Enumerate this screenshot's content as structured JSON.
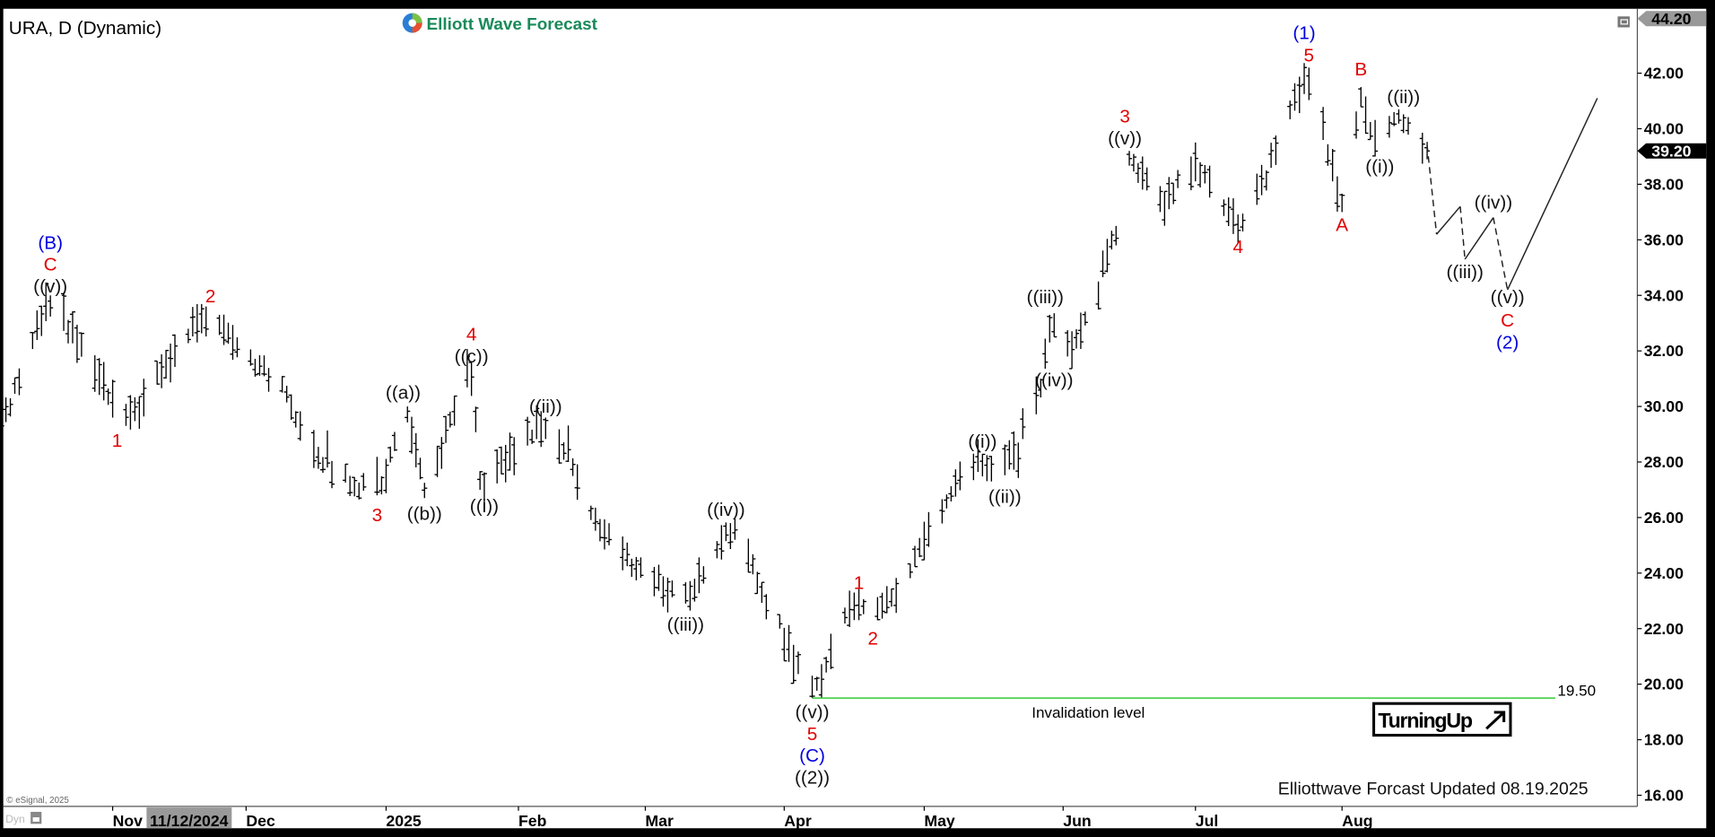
{
  "header": {
    "title": "URA, D (Dynamic)",
    "logo_text": "Elliott Wave Forecast"
  },
  "footer": {
    "copyright": "© eSignal, 2025",
    "dyn_label": "Dyn",
    "updated_text": "Elliottwave Forcast Updated 08.19.2025",
    "turning_up": "TurningUp"
  },
  "crosshair_date": "11/12/2024",
  "colors": {
    "red": "#e00000",
    "blue": "#0000e0",
    "black": "#111111",
    "invalidation_line": "#33cc33",
    "logo_green": "#1a8a5a"
  },
  "chart_data": {
    "type": "ohlc-bar",
    "symbol": "URA",
    "interval": "D",
    "ylim": [
      15.6,
      44.32
    ],
    "grid": false,
    "y_ticks": [
      "16.00",
      "18.00",
      "20.00",
      "22.00",
      "24.00",
      "26.00",
      "28.00",
      "30.00",
      "32.00",
      "34.00",
      "36.00",
      "38.00",
      "40.00",
      "42.00"
    ],
    "top_price_label": "44.20",
    "last_price_label": "39.20",
    "last_price": 39.2,
    "x_ticks": [
      {
        "label": "Nov",
        "date": "2024-11-01"
      },
      {
        "label": "Dec",
        "date": "2024-12-01"
      },
      {
        "label": "2025",
        "date": "2025-01-01"
      },
      {
        "label": "Feb",
        "date": "2025-02-01"
      },
      {
        "label": "Mar",
        "date": "2025-03-01"
      },
      {
        "label": "Apr",
        "date": "2025-04-01"
      },
      {
        "label": "May",
        "date": "2025-05-01"
      },
      {
        "label": "Jun",
        "date": "2025-06-01"
      },
      {
        "label": "Jul",
        "date": "2025-07-01"
      },
      {
        "label": "Aug",
        "date": "2025-08-01"
      }
    ],
    "first_bar_date": "2024-10-07",
    "last_bar_date": "2025-08-19",
    "swing_points": [
      [
        "2024-10-07",
        29.2
      ],
      [
        "2024-10-18",
        34.0
      ],
      [
        "2024-11-04",
        29.3
      ],
      [
        "2024-11-22",
        33.6
      ],
      [
        "2024-12-09",
        30.5
      ],
      [
        "2024-12-19",
        27.8
      ],
      [
        "2024-12-30",
        26.8
      ],
      [
        "2025-01-06",
        30.0
      ],
      [
        "2025-01-10",
        26.7
      ],
      [
        "2025-01-21",
        31.6
      ],
      [
        "2025-01-23",
        27.0
      ],
      [
        "2025-02-07",
        29.6
      ],
      [
        "2025-02-12",
        28.0
      ],
      [
        "2025-02-21",
        25.0
      ],
      [
        "2025-03-10",
        22.9
      ],
      [
        "2025-03-20",
        25.8
      ],
      [
        "2025-03-31",
        22.0
      ],
      [
        "2025-04-07",
        19.5
      ],
      [
        "2025-04-16",
        23.3
      ],
      [
        "2025-04-21",
        22.3
      ],
      [
        "2025-05-12",
        28.3
      ],
      [
        "2025-05-16",
        27.3
      ],
      [
        "2025-05-22",
        28.7
      ],
      [
        "2025-05-27",
        31.0
      ],
      [
        "2025-05-29",
        33.3
      ],
      [
        "2025-06-02",
        31.8
      ],
      [
        "2025-06-09",
        34.5
      ],
      [
        "2025-06-13",
        36.5
      ],
      [
        "2025-06-16",
        39.2
      ],
      [
        "2025-06-23",
        37.0
      ],
      [
        "2025-06-30",
        39.0
      ],
      [
        "2025-07-11",
        36.3
      ],
      [
        "2025-07-16",
        38.5
      ],
      [
        "2025-07-25",
        42.2
      ],
      [
        "2025-08-01",
        37.0
      ],
      [
        "2025-08-05",
        41.5
      ],
      [
        "2025-08-08",
        39.0
      ],
      [
        "2025-08-12",
        40.6
      ],
      [
        "2025-08-19",
        38.9
      ]
    ],
    "projection": [
      [
        "2025-08-19",
        39.4
      ],
      [
        "2025-08-21",
        36.2
      ],
      [
        "2025-08-26",
        37.2
      ],
      [
        "2025-08-27",
        35.3
      ],
      [
        "2025-09-02",
        36.8
      ],
      [
        "2025-09-05",
        34.2
      ],
      [
        "2025-09-24",
        41.1
      ]
    ],
    "invalidation": {
      "price": 19.5,
      "price_label": "19.50",
      "text": "Invalidation level",
      "start_date": "2025-04-07"
    },
    "wave_labels": [
      {
        "text": "(B)",
        "date": "2024-10-18",
        "price": 35.85,
        "color": "blue"
      },
      {
        "text": "C",
        "date": "2024-10-18",
        "price": 35.15,
        "color": "red"
      },
      {
        "text": "((v))",
        "date": "2024-10-18",
        "price": 34.4,
        "color": "black"
      },
      {
        "text": "1",
        "date": "2024-11-02",
        "price": 28.73,
        "color": "red"
      },
      {
        "text": "2",
        "date": "2024-11-23",
        "price": 33.92,
        "color": "red"
      },
      {
        "text": "3",
        "date": "2024-12-30",
        "price": 26.05,
        "color": "red"
      },
      {
        "text": "((a))",
        "date": "2025-01-05",
        "price": 30.46,
        "color": "black"
      },
      {
        "text": "((b))",
        "date": "2025-01-10",
        "price": 26.1,
        "color": "black"
      },
      {
        "text": "4",
        "date": "2025-01-21",
        "price": 32.55,
        "color": "red"
      },
      {
        "text": "((c))",
        "date": "2025-01-21",
        "price": 31.84,
        "color": "black"
      },
      {
        "text": "((i))",
        "date": "2025-01-24",
        "price": 26.36,
        "color": "black"
      },
      {
        "text": "((ii))",
        "date": "2025-02-07",
        "price": 29.95,
        "color": "black"
      },
      {
        "text": "((iii))",
        "date": "2025-03-10",
        "price": 22.1,
        "color": "black"
      },
      {
        "text": "((iv))",
        "date": "2025-03-19",
        "price": 26.24,
        "color": "black"
      },
      {
        "text": "((v))",
        "date": "2025-04-07",
        "price": 18.95,
        "color": "black"
      },
      {
        "text": "5",
        "date": "2025-04-07",
        "price": 18.3,
        "color": "red"
      },
      {
        "text": "(C)",
        "date": "2025-04-07",
        "price": 17.6,
        "color": "blue"
      },
      {
        "text": "((2))",
        "date": "2025-04-07",
        "price": 16.83,
        "color": "black"
      },
      {
        "text": "1",
        "date": "2025-04-17",
        "price": 23.6,
        "color": "red"
      },
      {
        "text": "2",
        "date": "2025-04-20",
        "price": 21.6,
        "color": "red"
      },
      {
        "text": "((i))",
        "date": "2025-05-14",
        "price": 28.7,
        "color": "black"
      },
      {
        "text": "((ii))",
        "date": "2025-05-19",
        "price": 26.7,
        "color": "black"
      },
      {
        "text": "((iii))",
        "date": "2025-05-28",
        "price": 33.9,
        "color": "black"
      },
      {
        "text": "((iv))",
        "date": "2025-05-30",
        "price": 30.9,
        "color": "black"
      },
      {
        "text": "3",
        "date": "2025-06-15",
        "price": 40.4,
        "color": "red"
      },
      {
        "text": "((v))",
        "date": "2025-06-15",
        "price": 39.7,
        "color": "black"
      },
      {
        "text": "4",
        "date": "2025-07-10",
        "price": 35.7,
        "color": "red"
      },
      {
        "text": "(1)",
        "date": "2025-07-24",
        "price": 43.4,
        "color": "blue"
      },
      {
        "text": "5",
        "date": "2025-07-25",
        "price": 42.6,
        "color": "red"
      },
      {
        "text": "A",
        "date": "2025-08-01",
        "price": 36.5,
        "color": "red"
      },
      {
        "text": "B",
        "date": "2025-08-05",
        "price": 42.1,
        "color": "red"
      },
      {
        "text": "((ii))",
        "date": "2025-08-14",
        "price": 41.1,
        "color": "black"
      },
      {
        "text": "((i))",
        "date": "2025-08-09",
        "price": 38.6,
        "color": "black"
      },
      {
        "text": "((iii))",
        "date": "2025-08-27",
        "price": 34.8,
        "color": "black"
      },
      {
        "text": "((iv))",
        "date": "2025-09-02",
        "price": 37.3,
        "color": "black"
      },
      {
        "text": "((v))",
        "date": "2025-09-05",
        "price": 33.9,
        "color": "black"
      },
      {
        "text": "C",
        "date": "2025-09-05",
        "price": 33.05,
        "color": "red"
      },
      {
        "text": "(2)",
        "date": "2025-09-05",
        "price": 32.3,
        "color": "blue"
      }
    ]
  }
}
